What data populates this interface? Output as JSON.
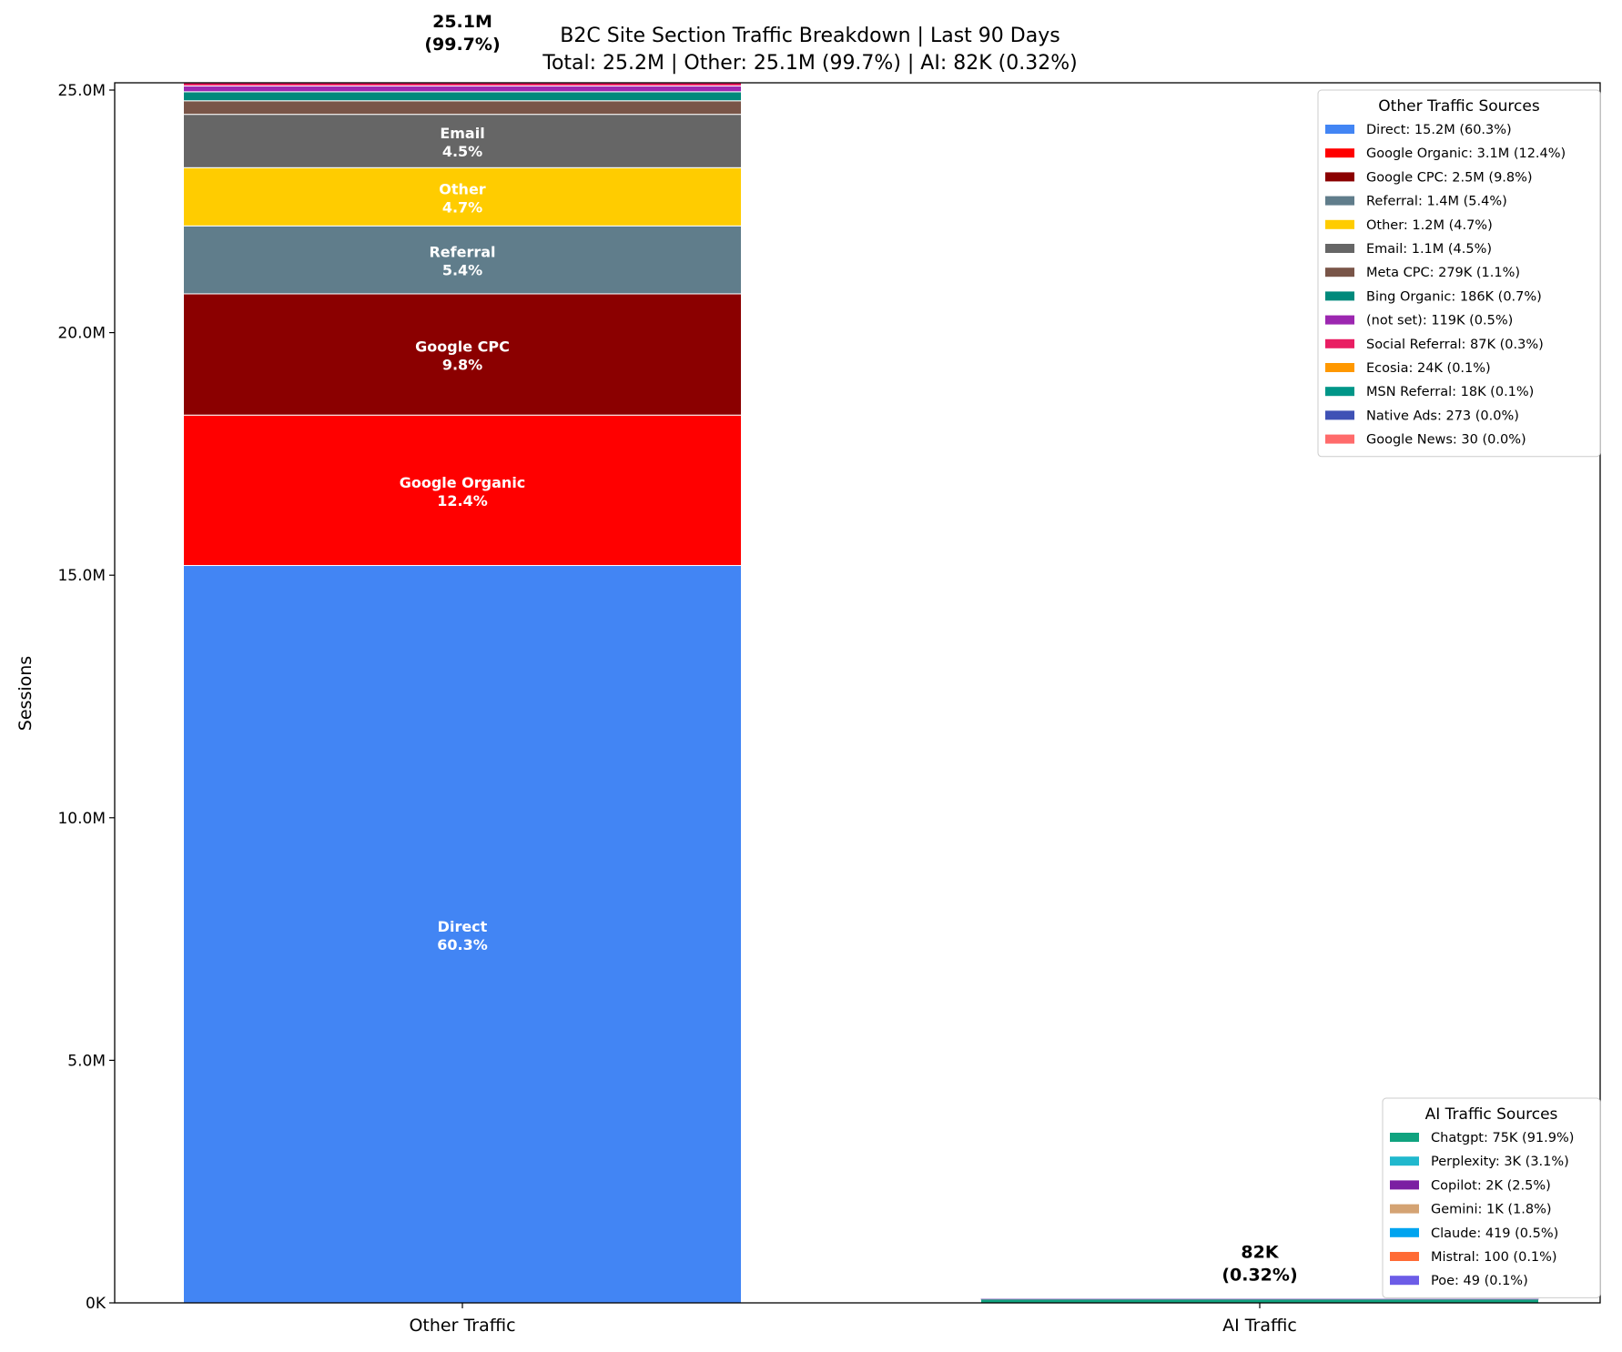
{
  "chart_data": {
    "type": "bar",
    "stacked": true,
    "title": "B2C Site Section Traffic Breakdown | Last 90 Days",
    "subtitle": "Total: 25.2M | Other: 25.1M (99.7%) | AI: 82K (0.32%)",
    "xlabel": "",
    "ylabel": "Sessions",
    "ylim": [
      0,
      25150000
    ],
    "yticks": [
      0,
      5000000,
      10000000,
      15000000,
      20000000,
      25000000
    ],
    "ytick_labels": [
      "0K",
      "5.0M",
      "10.0M",
      "15.0M",
      "20.0M",
      "25.0M"
    ],
    "categories": [
      "Other Traffic",
      "AI Traffic"
    ],
    "grid": false,
    "bars": [
      {
        "category": "Other Traffic",
        "total_label": "25.1M",
        "total_pct_label": "(99.7%)",
        "legend_title": "Other Traffic Sources",
        "legend_placement": "upper right",
        "segments": [
          {
            "name": "Direct",
            "value": 15200000,
            "pct": "60.3%",
            "legend": "Direct: 15.2M (60.3%)",
            "color": "#4285F4",
            "show_label": true
          },
          {
            "name": "Google Organic",
            "value": 3100000,
            "pct": "12.4%",
            "legend": "Google Organic: 3.1M (12.4%)",
            "color": "#FF0000",
            "show_label": true
          },
          {
            "name": "Google CPC",
            "value": 2500000,
            "pct": "9.8%",
            "legend": "Google CPC: 2.5M (9.8%)",
            "color": "#8B0000",
            "show_label": true
          },
          {
            "name": "Referral",
            "value": 1400000,
            "pct": "5.4%",
            "legend": "Referral: 1.4M (5.4%)",
            "color": "#607D8B",
            "show_label": true
          },
          {
            "name": "Other",
            "value": 1200000,
            "pct": "4.7%",
            "legend": "Other: 1.2M (4.7%)",
            "color": "#FFCC00",
            "show_label": true
          },
          {
            "name": "Email",
            "value": 1100000,
            "pct": "4.5%",
            "legend": "Email: 1.1M (4.5%)",
            "color": "#666666",
            "show_label": true
          },
          {
            "name": "Meta CPC",
            "value": 279000,
            "pct": "1.1%",
            "legend": "Meta CPC: 279K (1.1%)",
            "color": "#795548",
            "show_label": false
          },
          {
            "name": "Bing Organic",
            "value": 186000,
            "pct": "0.7%",
            "legend": "Bing Organic: 186K (0.7%)",
            "color": "#00897B",
            "show_label": false
          },
          {
            "name": "(not set)",
            "value": 119000,
            "pct": "0.5%",
            "legend": "(not set): 119K (0.5%)",
            "color": "#9C27B0",
            "show_label": false
          },
          {
            "name": "Social Referral",
            "value": 87000,
            "pct": "0.3%",
            "legend": "Social Referral: 87K (0.3%)",
            "color": "#E91E63",
            "show_label": false
          },
          {
            "name": "Ecosia",
            "value": 24000,
            "pct": "0.1%",
            "legend": "Ecosia: 24K (0.1%)",
            "color": "#FF9800",
            "show_label": false
          },
          {
            "name": "MSN Referral",
            "value": 18000,
            "pct": "0.1%",
            "legend": "MSN Referral: 18K (0.1%)",
            "color": "#009688",
            "show_label": false
          },
          {
            "name": "Native Ads",
            "value": 273,
            "pct": "0.0%",
            "legend": "Native Ads: 273 (0.0%)",
            "color": "#3F51B5",
            "show_label": false
          },
          {
            "name": "Google News",
            "value": 30,
            "pct": "0.0%",
            "legend": "Google News: 30 (0.0%)",
            "color": "#FF6B6B",
            "show_label": false
          }
        ]
      },
      {
        "category": "AI Traffic",
        "total_label": "82K",
        "total_pct_label": "(0.32%)",
        "legend_title": "AI Traffic Sources",
        "legend_placement": "lower right",
        "segments": [
          {
            "name": "Chatgpt",
            "value": 75000,
            "pct": "91.9%",
            "legend": "Chatgpt: 75K (91.9%)",
            "color": "#10A37F",
            "show_label": false
          },
          {
            "name": "Perplexity",
            "value": 3000,
            "pct": "3.1%",
            "legend": "Perplexity: 3K (3.1%)",
            "color": "#20B8CD",
            "show_label": false
          },
          {
            "name": "Copilot",
            "value": 2000,
            "pct": "2.5%",
            "legend": "Copilot: 2K (2.5%)",
            "color": "#7B1FA2",
            "show_label": false
          },
          {
            "name": "Gemini",
            "value": 1000,
            "pct": "1.8%",
            "legend": "Gemini: 1K (1.8%)",
            "color": "#D4A373",
            "show_label": false
          },
          {
            "name": "Claude",
            "value": 419,
            "pct": "0.5%",
            "legend": "Claude: 419 (0.5%)",
            "color": "#00A4EF",
            "show_label": false
          },
          {
            "name": "Mistral",
            "value": 100,
            "pct": "0.1%",
            "legend": "Mistral: 100 (0.1%)",
            "color": "#FF6B35",
            "show_label": false
          },
          {
            "name": "Poe",
            "value": 49,
            "pct": "0.1%",
            "legend": "Poe: 49 (0.1%)",
            "color": "#6C5CE7",
            "show_label": false
          }
        ]
      }
    ]
  }
}
